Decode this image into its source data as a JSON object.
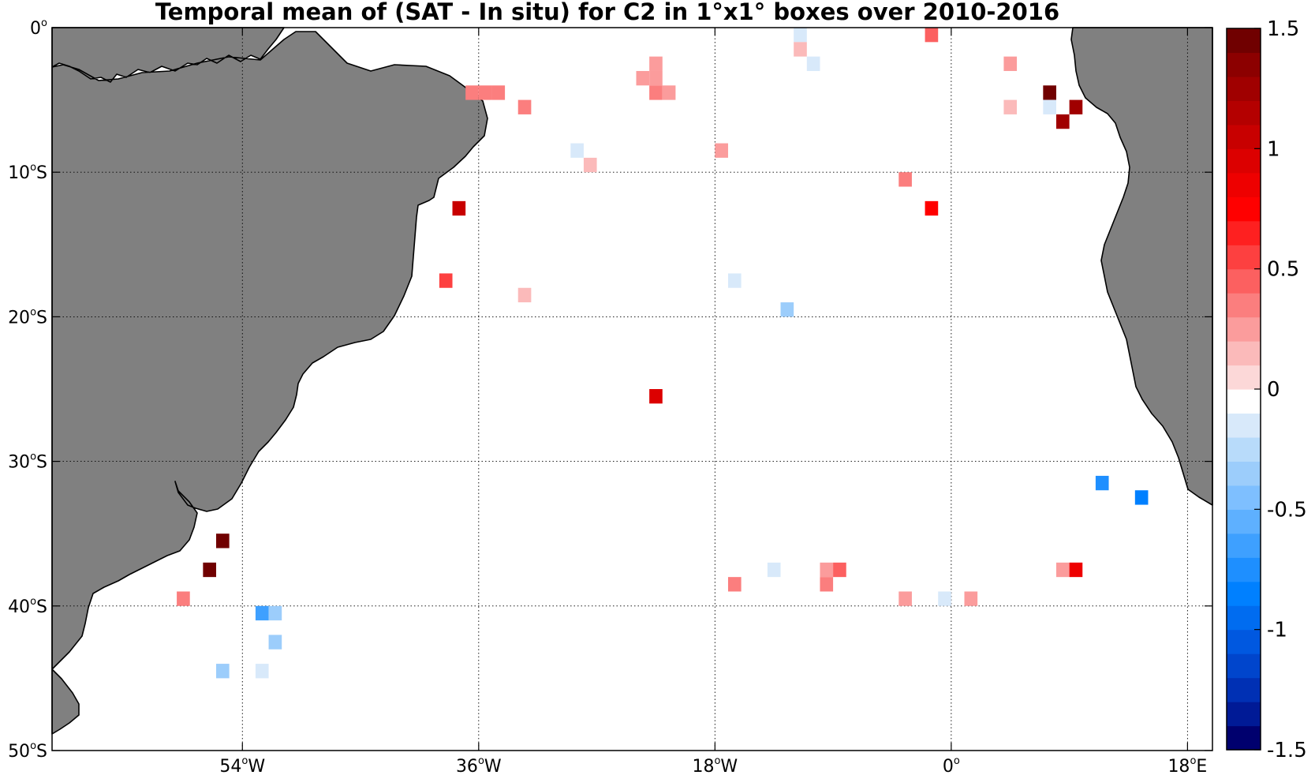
{
  "title": "Temporal mean of (SAT - In situ) for C2 in 1°x1° boxes over 2010-2016",
  "map": {
    "lon_range": [
      -68.5,
      19.9
    ],
    "lat_range": [
      -50,
      0
    ],
    "grid_lons": [
      -54,
      -36,
      -18,
      0,
      18
    ],
    "grid_lats": [
      0,
      -10,
      -20,
      -30,
      -40,
      -50
    ],
    "x_ticks": [
      {
        "lon": -54,
        "deg": "54",
        "hemi": "W"
      },
      {
        "lon": -36,
        "deg": "36",
        "hemi": "W"
      },
      {
        "lon": -18,
        "deg": "18",
        "hemi": "W"
      },
      {
        "lon": 0,
        "deg": "0",
        "hemi": ""
      },
      {
        "lon": 18,
        "deg": "18",
        "hemi": "E"
      }
    ],
    "y_ticks": [
      {
        "lat": 0,
        "deg": "0",
        "hemi": ""
      },
      {
        "lat": -10,
        "deg": "10",
        "hemi": "S"
      },
      {
        "lat": -20,
        "deg": "20",
        "hemi": "S"
      },
      {
        "lat": -30,
        "deg": "30",
        "hemi": "S"
      },
      {
        "lat": -40,
        "deg": "40",
        "hemi": "S"
      },
      {
        "lat": -50,
        "deg": "50",
        "hemi": "S"
      }
    ],
    "land_color": "#808080",
    "coast_color": "#000000",
    "grid": true
  },
  "colorbar": {
    "min": -1.5,
    "max": 1.5,
    "tick_values": [
      1.5,
      1,
      0.5,
      0,
      -0.5,
      -1,
      -1.5
    ],
    "tick_labels": [
      "1.5",
      "1",
      "0.5",
      "0",
      "-0.5",
      "-1",
      "-1.5"
    ],
    "colors": [
      "#00006e",
      "#001a96",
      "#0030b4",
      "#0045cc",
      "#0058e0",
      "#006cf0",
      "#0080ff",
      "#1e8fff",
      "#3ea0ff",
      "#5eb0ff",
      "#7ebfff",
      "#9ccdfb",
      "#b8dbfa",
      "#d8e9fa",
      "#ffffff",
      "#fcd8d8",
      "#fbbaba",
      "#fb9c9c",
      "#fb7e7e",
      "#fc6060",
      "#fd4040",
      "#fe2020",
      "#ff0000",
      "#ee0000",
      "#dc0000",
      "#c80000",
      "#b40000",
      "#a00000",
      "#8c0000",
      "#700000"
    ]
  },
  "chart_data": {
    "type": "heatmap",
    "title": "Temporal mean of (SAT - In situ) for C2 in 1°x1° boxes over 2010-2016",
    "xlabel": "",
    "ylabel": "",
    "xlim": [
      -68.5,
      19.9
    ],
    "ylim": [
      -50,
      0
    ],
    "value_range": [
      -1.5,
      1.5
    ],
    "cells": [
      {
        "lon": -1.5,
        "lat": -0.5,
        "value": 0.4
      },
      {
        "lon": -11.5,
        "lat": -0.5,
        "value": -0.1
      },
      {
        "lon": -11.5,
        "lat": -1.5,
        "value": 0.15
      },
      {
        "lon": -10.5,
        "lat": -2.5,
        "value": -0.2
      },
      {
        "lon": -22.5,
        "lat": -2.5,
        "value": 0.2
      },
      {
        "lon": -23.5,
        "lat": -3.5,
        "value": 0.2
      },
      {
        "lon": -22.5,
        "lat": -3.5,
        "value": 0.2
      },
      {
        "lon": -22.5,
        "lat": -4.5,
        "value": 0.3
      },
      {
        "lon": -21.5,
        "lat": -4.5,
        "value": 0.2
      },
      {
        "lon": -36.5,
        "lat": -4.5,
        "value": 0.3
      },
      {
        "lon": -35.5,
        "lat": -4.5,
        "value": 0.3
      },
      {
        "lon": -34.5,
        "lat": -4.5,
        "value": 0.3
      },
      {
        "lon": -32.5,
        "lat": -5.5,
        "value": 0.35
      },
      {
        "lon": -28.5,
        "lat": -8.5,
        "value": -0.15
      },
      {
        "lon": -27.5,
        "lat": -9.5,
        "value": 0.15
      },
      {
        "lon": -17.5,
        "lat": -8.5,
        "value": 0.2
      },
      {
        "lon": 4.5,
        "lat": -2.5,
        "value": 0.2
      },
      {
        "lon": 4.5,
        "lat": -5.5,
        "value": 0.15
      },
      {
        "lon": 7.5,
        "lat": -4.5,
        "value": 1.45
      },
      {
        "lon": 7.5,
        "lat": -5.5,
        "value": -0.1
      },
      {
        "lon": 8.5,
        "lat": -6.5,
        "value": 1.3
      },
      {
        "lon": 9.5,
        "lat": -5.5,
        "value": 1.2
      },
      {
        "lon": -3.5,
        "lat": -10.5,
        "value": 0.35
      },
      {
        "lon": -1.5,
        "lat": -12.5,
        "value": 0.7
      },
      {
        "lon": -37.5,
        "lat": -12.5,
        "value": 1.0
      },
      {
        "lon": -38.5,
        "lat": -17.5,
        "value": 0.5
      },
      {
        "lon": -32.5,
        "lat": -18.5,
        "value": 0.15
      },
      {
        "lon": -16.5,
        "lat": -17.5,
        "value": -0.15
      },
      {
        "lon": -12.5,
        "lat": -19.5,
        "value": -0.4
      },
      {
        "lon": -22.5,
        "lat": -25.5,
        "value": 0.95
      },
      {
        "lon": 11.5,
        "lat": -31.5,
        "value": -0.75
      },
      {
        "lon": 14.5,
        "lat": -32.5,
        "value": -0.8
      },
      {
        "lon": -55.5,
        "lat": -35.5,
        "value": 1.4
      },
      {
        "lon": -56.5,
        "lat": -37.5,
        "value": 1.5
      },
      {
        "lon": -58.5,
        "lat": -39.5,
        "value": 0.35
      },
      {
        "lon": -52.5,
        "lat": -40.5,
        "value": -0.7
      },
      {
        "lon": -51.5,
        "lat": -40.5,
        "value": -0.4
      },
      {
        "lon": -51.5,
        "lat": -42.5,
        "value": -0.3
      },
      {
        "lon": -55.5,
        "lat": -44.5,
        "value": -0.3
      },
      {
        "lon": -52.5,
        "lat": -44.5,
        "value": -0.15
      },
      {
        "lon": -16.5,
        "lat": -38.5,
        "value": 0.35
      },
      {
        "lon": -13.5,
        "lat": -37.5,
        "value": -0.15
      },
      {
        "lon": -9.5,
        "lat": -37.5,
        "value": 0.2
      },
      {
        "lon": -8.5,
        "lat": -37.5,
        "value": 0.45
      },
      {
        "lon": -9.5,
        "lat": -38.5,
        "value": 0.3
      },
      {
        "lon": -3.5,
        "lat": -39.5,
        "value": 0.2
      },
      {
        "lon": -0.5,
        "lat": -39.5,
        "value": -0.15
      },
      {
        "lon": 1.5,
        "lat": -39.5,
        "value": 0.2
      },
      {
        "lon": 8.5,
        "lat": -37.5,
        "value": 0.2
      },
      {
        "lon": 9.5,
        "lat": -37.5,
        "value": 0.85
      }
    ]
  }
}
